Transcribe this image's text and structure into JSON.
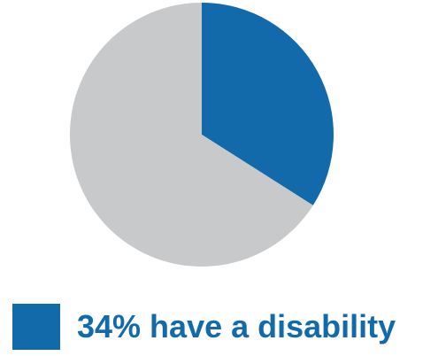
{
  "chart_data": {
    "type": "pie",
    "slices": [
      {
        "label": "have a disability",
        "value": 34,
        "color": "#136aab"
      },
      {
        "label": "",
        "value": 66,
        "color": "#c8c9cb"
      }
    ],
    "legend": {
      "text": "34% have a disability",
      "color": "#136aab",
      "placement": "bottom-left"
    }
  }
}
